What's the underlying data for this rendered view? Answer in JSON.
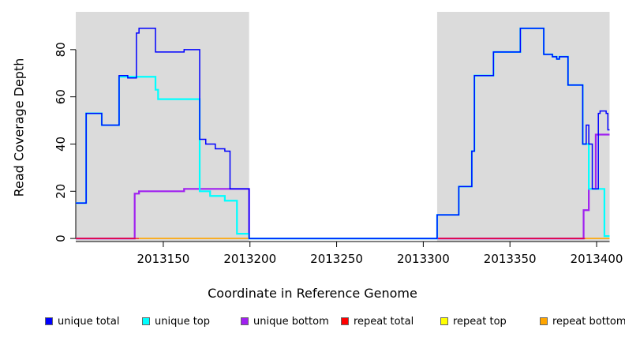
{
  "chart_data": {
    "type": "line",
    "subtype": "step",
    "title": "",
    "xlabel": "Coordinate in Reference Genome",
    "ylabel": "Read Coverage Depth",
    "x_ticks": [
      2013150,
      2013200,
      2013250,
      2013300,
      2013350,
      2013400
    ],
    "y_ticks": [
      0,
      20,
      40,
      60,
      80
    ],
    "x_range": [
      2013099.5,
      2013407.5
    ],
    "y_range": [
      -1.3,
      96
    ],
    "grid": false,
    "legend_position": "bottom",
    "background_color": "#FFFFFF",
    "axis_color": "#000000",
    "highlight_color": "#DBDBDB",
    "highlight_regions": [
      [
        2013099.5,
        2013199.5
      ],
      [
        2013308,
        2013407.5
      ]
    ],
    "series": [
      {
        "name": "repeat top",
        "color": "#FFFF00",
        "segments": []
      },
      {
        "name": "unique bottom",
        "color": "#A020F0",
        "segments": [
          [
            [
              2013099.5,
              0
            ],
            [
              2013133.5,
              19
            ],
            [
              2013136,
              20
            ],
            [
              2013162,
              21
            ],
            [
              2013199.5,
              0
            ],
            [
              2013392.5,
              12
            ],
            [
              2013395.5,
              21
            ],
            [
              2013399.5,
              44
            ],
            [
              2013407.5,
              44
            ]
          ]
        ]
      },
      {
        "name": "repeat total",
        "color": "#FF0000",
        "segments": [
          [
            [
              2013099.5,
              0
            ],
            [
              2013136,
              0
            ]
          ],
          [
            [
              2013308,
              0
            ],
            [
              2013393.5,
              0
            ]
          ]
        ]
      },
      {
        "name": "repeat bottom",
        "color": "#FFA500",
        "segments": [
          [
            [
              2013136,
              0
            ],
            [
              2013199.5,
              0
            ]
          ],
          [
            [
              2013393.5,
              0
            ],
            [
              2013407.5,
              0
            ]
          ]
        ]
      },
      {
        "name": "unique top",
        "color": "#00FFFF",
        "segments": [
          [
            [
              2013099.5,
              15
            ],
            [
              2013105.5,
              53
            ],
            [
              2013114.5,
              48
            ],
            [
              2013124.5,
              68.5
            ],
            [
              2013145.5,
              63
            ],
            [
              2013147,
              59
            ],
            [
              2013171,
              20
            ],
            [
              2013177,
              18
            ],
            [
              2013185.5,
              16
            ],
            [
              2013192.5,
              2
            ],
            [
              2013199.5,
              0
            ],
            [
              2013308,
              10
            ],
            [
              2013320.5,
              22
            ],
            [
              2013328,
              37
            ],
            [
              2013329.5,
              69
            ],
            [
              2013340.5,
              79
            ],
            [
              2013356,
              89
            ],
            [
              2013369.5,
              78
            ],
            [
              2013374.5,
              77
            ],
            [
              2013377,
              76
            ],
            [
              2013378.5,
              77
            ],
            [
              2013383.5,
              65
            ],
            [
              2013392,
              40
            ],
            [
              2013395.5,
              21
            ],
            [
              2013404.5,
              1
            ],
            [
              2013407.5,
              1
            ]
          ]
        ]
      },
      {
        "name": "unique total",
        "color": "#0000FF",
        "segments": [
          [
            [
              2013099.5,
              15
            ],
            [
              2013105.5,
              53
            ],
            [
              2013114.5,
              48
            ],
            [
              2013124.5,
              69
            ],
            [
              2013129.5,
              68
            ],
            [
              2013134.5,
              87
            ],
            [
              2013136,
              89
            ],
            [
              2013145.5,
              79
            ],
            [
              2013162,
              80
            ],
            [
              2013171,
              42
            ],
            [
              2013174.5,
              40
            ],
            [
              2013180,
              38
            ],
            [
              2013185.5,
              37
            ],
            [
              2013188.5,
              21
            ],
            [
              2013199.5,
              0
            ],
            [
              2013308,
              10
            ],
            [
              2013320.5,
              22
            ],
            [
              2013328,
              37
            ],
            [
              2013329.5,
              69
            ],
            [
              2013340.5,
              79
            ],
            [
              2013356,
              89
            ],
            [
              2013369.5,
              78
            ],
            [
              2013374.5,
              77
            ],
            [
              2013377,
              76
            ],
            [
              2013378.5,
              77
            ],
            [
              2013383.5,
              65
            ],
            [
              2013392,
              40
            ],
            [
              2013394,
              48
            ],
            [
              2013395.5,
              40
            ],
            [
              2013397.5,
              21
            ],
            [
              2013401,
              53
            ],
            [
              2013402,
              54
            ],
            [
              2013405.5,
              53
            ],
            [
              2013406.5,
              46
            ],
            [
              2013407.5,
              46
            ]
          ]
        ]
      }
    ],
    "legend": [
      {
        "label": "unique total",
        "color": "#0000FF"
      },
      {
        "label": "unique top",
        "color": "#00FFFF"
      },
      {
        "label": "unique bottom",
        "color": "#A020F0"
      },
      {
        "label": "repeat total",
        "color": "#FF0000"
      },
      {
        "label": "repeat top",
        "color": "#FFFF00"
      },
      {
        "label": "repeat bottom",
        "color": "#FFA500"
      }
    ]
  }
}
